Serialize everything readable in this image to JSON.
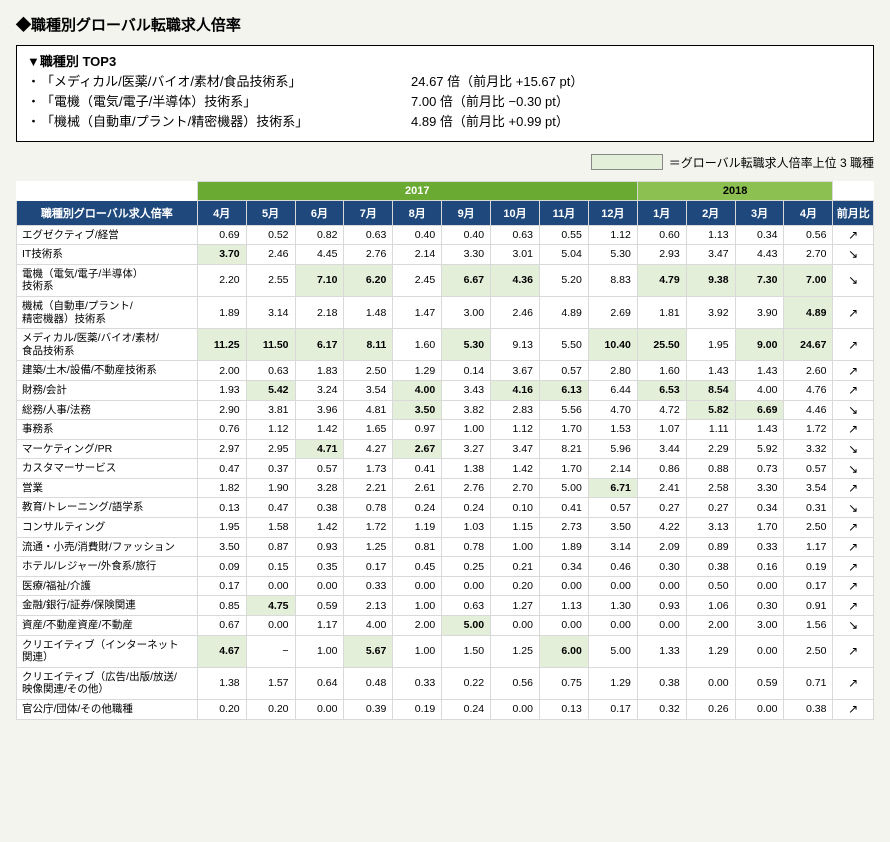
{
  "title": "◆職種別グローバル転職求人倍率",
  "top3": {
    "heading": "▼職種別 TOP3",
    "items": [
      {
        "name": "「メディカル/医薬/バイオ/素材/食品技術系」",
        "value": "24.67 倍（前月比  +15.67 pt）"
      },
      {
        "name": "「電機（電気/電子/半導体）技術系」",
        "value": "7.00 倍（前月比  −0.30 pt）"
      },
      {
        "name": "「機械（自動車/プラント/精密機器）技術系」",
        "value": "4.89 倍（前月比  +0.99 pt）"
      }
    ]
  },
  "legend": "＝グローバル転職求人倍率上位 3 職種",
  "table": {
    "corner": "職種別グローバル求人倍率",
    "year1": "2017",
    "year2": "2018",
    "months": [
      "4月",
      "5月",
      "6月",
      "7月",
      "8月",
      "9月",
      "10月",
      "11月",
      "12月",
      "1月",
      "2月",
      "3月",
      "4月"
    ],
    "monthChange": "前月比",
    "highlightColor": "#e4efda",
    "rows": [
      {
        "cat": "エグゼクティブ/経営",
        "arrow": "↗",
        "cells": [
          {
            "v": "0.69"
          },
          {
            "v": "0.52"
          },
          {
            "v": "0.82"
          },
          {
            "v": "0.63"
          },
          {
            "v": "0.40"
          },
          {
            "v": "0.40"
          },
          {
            "v": "0.63"
          },
          {
            "v": "0.55"
          },
          {
            "v": "1.12"
          },
          {
            "v": "0.60"
          },
          {
            "v": "1.13"
          },
          {
            "v": "0.34"
          },
          {
            "v": "0.56"
          }
        ]
      },
      {
        "cat": "IT技術系",
        "arrow": "↘",
        "cells": [
          {
            "v": "3.70",
            "hl": true
          },
          {
            "v": "2.46"
          },
          {
            "v": "4.45"
          },
          {
            "v": "2.76"
          },
          {
            "v": "2.14"
          },
          {
            "v": "3.30"
          },
          {
            "v": "3.01"
          },
          {
            "v": "5.04"
          },
          {
            "v": "5.30"
          },
          {
            "v": "2.93"
          },
          {
            "v": "3.47"
          },
          {
            "v": "4.43"
          },
          {
            "v": "2.70"
          }
        ]
      },
      {
        "cat": "電機（電気/電子/半導体）\n技術系",
        "arrow": "↘",
        "cells": [
          {
            "v": "2.20"
          },
          {
            "v": "2.55"
          },
          {
            "v": "7.10",
            "hl": true
          },
          {
            "v": "6.20",
            "hl": true
          },
          {
            "v": "2.45"
          },
          {
            "v": "6.67",
            "hl": true
          },
          {
            "v": "4.36",
            "hl": true
          },
          {
            "v": "5.20"
          },
          {
            "v": "8.83"
          },
          {
            "v": "4.79",
            "hl": true
          },
          {
            "v": "9.38",
            "hl": true
          },
          {
            "v": "7.30",
            "hl": true
          },
          {
            "v": "7.00",
            "hl": true
          }
        ]
      },
      {
        "cat": "機械（自動車/プラント/\n精密機器）技術系",
        "arrow": "↗",
        "cells": [
          {
            "v": "1.89"
          },
          {
            "v": "3.14"
          },
          {
            "v": "2.18"
          },
          {
            "v": "1.48"
          },
          {
            "v": "1.47"
          },
          {
            "v": "3.00"
          },
          {
            "v": "2.46"
          },
          {
            "v": "4.89"
          },
          {
            "v": "2.69"
          },
          {
            "v": "1.81"
          },
          {
            "v": "3.92"
          },
          {
            "v": "3.90"
          },
          {
            "v": "4.89",
            "hl": true
          }
        ]
      },
      {
        "cat": "メディカル/医薬/バイオ/素材/\n食品技術系",
        "arrow": "↗",
        "cells": [
          {
            "v": "11.25",
            "hl": true
          },
          {
            "v": "11.50",
            "hl": true
          },
          {
            "v": "6.17",
            "hl": true
          },
          {
            "v": "8.11",
            "hl": true
          },
          {
            "v": "1.60"
          },
          {
            "v": "5.30",
            "hl": true
          },
          {
            "v": "9.13"
          },
          {
            "v": "5.50"
          },
          {
            "v": "10.40",
            "hl": true
          },
          {
            "v": "25.50",
            "hl": true
          },
          {
            "v": "1.95"
          },
          {
            "v": "9.00",
            "hl": true
          },
          {
            "v": "24.67",
            "hl": true
          }
        ]
      },
      {
        "cat": "建築/土木/設備/不動産技術系",
        "arrow": "↗",
        "cells": [
          {
            "v": "2.00"
          },
          {
            "v": "0.63"
          },
          {
            "v": "1.83"
          },
          {
            "v": "2.50"
          },
          {
            "v": "1.29"
          },
          {
            "v": "0.14"
          },
          {
            "v": "3.67"
          },
          {
            "v": "0.57"
          },
          {
            "v": "2.80"
          },
          {
            "v": "1.60"
          },
          {
            "v": "1.43"
          },
          {
            "v": "1.43"
          },
          {
            "v": "2.60"
          }
        ]
      },
      {
        "cat": "財務/会計",
        "arrow": "↗",
        "cells": [
          {
            "v": "1.93"
          },
          {
            "v": "5.42",
            "hl": true
          },
          {
            "v": "3.24"
          },
          {
            "v": "3.54"
          },
          {
            "v": "4.00",
            "hl": true
          },
          {
            "v": "3.43"
          },
          {
            "v": "4.16",
            "hl": true
          },
          {
            "v": "6.13",
            "hl": true
          },
          {
            "v": "6.44"
          },
          {
            "v": "6.53",
            "hl": true
          },
          {
            "v": "8.54",
            "hl": true
          },
          {
            "v": "4.00"
          },
          {
            "v": "4.76"
          }
        ]
      },
      {
        "cat": "総務/人事/法務",
        "arrow": "↘",
        "cells": [
          {
            "v": "2.90"
          },
          {
            "v": "3.81"
          },
          {
            "v": "3.96"
          },
          {
            "v": "4.81"
          },
          {
            "v": "3.50",
            "hl": true
          },
          {
            "v": "3.82"
          },
          {
            "v": "2.83"
          },
          {
            "v": "5.56"
          },
          {
            "v": "4.70"
          },
          {
            "v": "4.72"
          },
          {
            "v": "5.82",
            "hl": true
          },
          {
            "v": "6.69",
            "hl": true
          },
          {
            "v": "4.46"
          }
        ]
      },
      {
        "cat": "事務系",
        "arrow": "↗",
        "cells": [
          {
            "v": "0.76"
          },
          {
            "v": "1.12"
          },
          {
            "v": "1.42"
          },
          {
            "v": "1.65"
          },
          {
            "v": "0.97"
          },
          {
            "v": "1.00"
          },
          {
            "v": "1.12"
          },
          {
            "v": "1.70"
          },
          {
            "v": "1.53"
          },
          {
            "v": "1.07"
          },
          {
            "v": "1.11"
          },
          {
            "v": "1.43"
          },
          {
            "v": "1.72"
          }
        ]
      },
      {
        "cat": "マーケティング/PR",
        "arrow": "↘",
        "cells": [
          {
            "v": "2.97"
          },
          {
            "v": "2.95"
          },
          {
            "v": "4.71",
            "hl": true
          },
          {
            "v": "4.27"
          },
          {
            "v": "2.67",
            "hl": true
          },
          {
            "v": "3.27"
          },
          {
            "v": "3.47"
          },
          {
            "v": "8.21"
          },
          {
            "v": "5.96"
          },
          {
            "v": "3.44"
          },
          {
            "v": "2.29"
          },
          {
            "v": "5.92"
          },
          {
            "v": "3.32"
          }
        ]
      },
      {
        "cat": "カスタマーサービス",
        "arrow": "↘",
        "cells": [
          {
            "v": "0.47"
          },
          {
            "v": "0.37"
          },
          {
            "v": "0.57"
          },
          {
            "v": "1.73"
          },
          {
            "v": "0.41"
          },
          {
            "v": "1.38"
          },
          {
            "v": "1.42"
          },
          {
            "v": "1.70"
          },
          {
            "v": "2.14"
          },
          {
            "v": "0.86"
          },
          {
            "v": "0.88"
          },
          {
            "v": "0.73"
          },
          {
            "v": "0.57"
          }
        ]
      },
      {
        "cat": "営業",
        "arrow": "↗",
        "cells": [
          {
            "v": "1.82"
          },
          {
            "v": "1.90"
          },
          {
            "v": "3.28"
          },
          {
            "v": "2.21"
          },
          {
            "v": "2.61"
          },
          {
            "v": "2.76"
          },
          {
            "v": "2.70"
          },
          {
            "v": "5.00"
          },
          {
            "v": "6.71",
            "hl": true
          },
          {
            "v": "2.41"
          },
          {
            "v": "2.58"
          },
          {
            "v": "3.30"
          },
          {
            "v": "3.54"
          }
        ]
      },
      {
        "cat": "教育/トレーニング/語学系",
        "arrow": "↘",
        "cells": [
          {
            "v": "0.13"
          },
          {
            "v": "0.47"
          },
          {
            "v": "0.38"
          },
          {
            "v": "0.78"
          },
          {
            "v": "0.24"
          },
          {
            "v": "0.24"
          },
          {
            "v": "0.10"
          },
          {
            "v": "0.41"
          },
          {
            "v": "0.57"
          },
          {
            "v": "0.27"
          },
          {
            "v": "0.27"
          },
          {
            "v": "0.34"
          },
          {
            "v": "0.31"
          }
        ]
      },
      {
        "cat": "コンサルティング",
        "arrow": "↗",
        "cells": [
          {
            "v": "1.95"
          },
          {
            "v": "1.58"
          },
          {
            "v": "1.42"
          },
          {
            "v": "1.72"
          },
          {
            "v": "1.19"
          },
          {
            "v": "1.03"
          },
          {
            "v": "1.15"
          },
          {
            "v": "2.73"
          },
          {
            "v": "3.50"
          },
          {
            "v": "4.22"
          },
          {
            "v": "3.13"
          },
          {
            "v": "1.70"
          },
          {
            "v": "2.50"
          }
        ]
      },
      {
        "cat": "流通・小売/消費財/ファッション",
        "arrow": "↗",
        "cells": [
          {
            "v": "3.50"
          },
          {
            "v": "0.87"
          },
          {
            "v": "0.93"
          },
          {
            "v": "1.25"
          },
          {
            "v": "0.81"
          },
          {
            "v": "0.78"
          },
          {
            "v": "1.00"
          },
          {
            "v": "1.89"
          },
          {
            "v": "3.14"
          },
          {
            "v": "2.09"
          },
          {
            "v": "0.89"
          },
          {
            "v": "0.33"
          },
          {
            "v": "1.17"
          }
        ]
      },
      {
        "cat": "ホテル/レジャー/外食系/旅行",
        "arrow": "↗",
        "cells": [
          {
            "v": "0.09"
          },
          {
            "v": "0.15"
          },
          {
            "v": "0.35"
          },
          {
            "v": "0.17"
          },
          {
            "v": "0.45"
          },
          {
            "v": "0.25"
          },
          {
            "v": "0.21"
          },
          {
            "v": "0.34"
          },
          {
            "v": "0.46"
          },
          {
            "v": "0.30"
          },
          {
            "v": "0.38"
          },
          {
            "v": "0.16"
          },
          {
            "v": "0.19"
          }
        ]
      },
      {
        "cat": "医療/福祉/介護",
        "arrow": "↗",
        "cells": [
          {
            "v": "0.17"
          },
          {
            "v": "0.00"
          },
          {
            "v": "0.00"
          },
          {
            "v": "0.33"
          },
          {
            "v": "0.00"
          },
          {
            "v": "0.00"
          },
          {
            "v": "0.20"
          },
          {
            "v": "0.00"
          },
          {
            "v": "0.00"
          },
          {
            "v": "0.00"
          },
          {
            "v": "0.50"
          },
          {
            "v": "0.00"
          },
          {
            "v": "0.17"
          }
        ]
      },
      {
        "cat": "金融/銀行/証券/保険関連",
        "arrow": "↗",
        "cells": [
          {
            "v": "0.85"
          },
          {
            "v": "4.75",
            "hl": true
          },
          {
            "v": "0.59"
          },
          {
            "v": "2.13"
          },
          {
            "v": "1.00"
          },
          {
            "v": "0.63"
          },
          {
            "v": "1.27"
          },
          {
            "v": "1.13"
          },
          {
            "v": "1.30"
          },
          {
            "v": "0.93"
          },
          {
            "v": "1.06"
          },
          {
            "v": "0.30"
          },
          {
            "v": "0.91"
          }
        ]
      },
      {
        "cat": "資産/不動産資産/不動産",
        "arrow": "↘",
        "cells": [
          {
            "v": "0.67"
          },
          {
            "v": "0.00"
          },
          {
            "v": "1.17"
          },
          {
            "v": "4.00"
          },
          {
            "v": "2.00"
          },
          {
            "v": "5.00",
            "hl": true
          },
          {
            "v": "0.00"
          },
          {
            "v": "0.00"
          },
          {
            "v": "0.00"
          },
          {
            "v": "0.00"
          },
          {
            "v": "2.00"
          },
          {
            "v": "3.00"
          },
          {
            "v": "1.56"
          }
        ]
      },
      {
        "cat": "クリエイティブ（インターネット\n関連）",
        "arrow": "↗",
        "cells": [
          {
            "v": "4.67",
            "hl": true
          },
          {
            "v": "−"
          },
          {
            "v": "1.00"
          },
          {
            "v": "5.67",
            "hl": true
          },
          {
            "v": "1.00"
          },
          {
            "v": "1.50"
          },
          {
            "v": "1.25"
          },
          {
            "v": "6.00",
            "hl": true
          },
          {
            "v": "5.00"
          },
          {
            "v": "1.33"
          },
          {
            "v": "1.29"
          },
          {
            "v": "0.00"
          },
          {
            "v": "2.50"
          }
        ]
      },
      {
        "cat": "クリエイティブ（広告/出版/放送/\n映像関連/その他）",
        "arrow": "↗",
        "cells": [
          {
            "v": "1.38"
          },
          {
            "v": "1.57"
          },
          {
            "v": "0.64"
          },
          {
            "v": "0.48"
          },
          {
            "v": "0.33"
          },
          {
            "v": "0.22"
          },
          {
            "v": "0.56"
          },
          {
            "v": "0.75"
          },
          {
            "v": "1.29"
          },
          {
            "v": "0.38"
          },
          {
            "v": "0.00"
          },
          {
            "v": "0.59"
          },
          {
            "v": "0.71"
          }
        ]
      },
      {
        "cat": "官公庁/団体/その他職種",
        "arrow": "↗",
        "cells": [
          {
            "v": "0.20"
          },
          {
            "v": "0.20"
          },
          {
            "v": "0.00"
          },
          {
            "v": "0.39"
          },
          {
            "v": "0.19"
          },
          {
            "v": "0.24"
          },
          {
            "v": "0.00"
          },
          {
            "v": "0.13"
          },
          {
            "v": "0.17"
          },
          {
            "v": "0.32"
          },
          {
            "v": "0.26"
          },
          {
            "v": "0.00"
          },
          {
            "v": "0.38"
          }
        ]
      }
    ]
  }
}
